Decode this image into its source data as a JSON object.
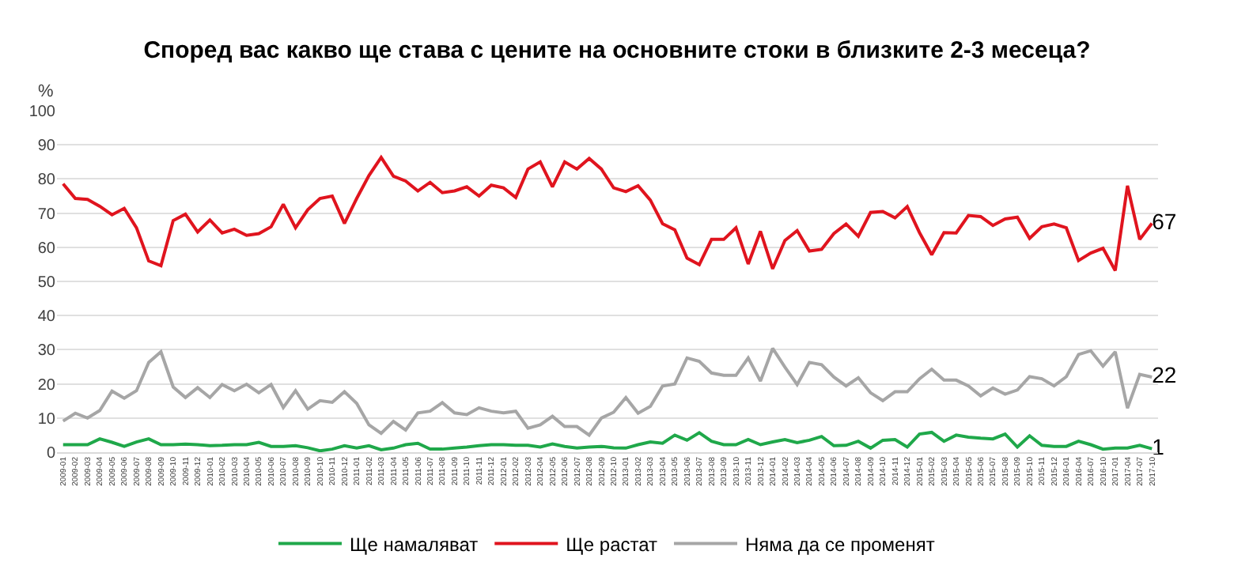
{
  "chart_data": {
    "type": "line",
    "title": "Според вас какво ще става с цените на основните стоки в близките 2-3 месеца?",
    "ylabel": "%",
    "categories": [
      "2009-01",
      "2009-02",
      "2009-03",
      "2009-04",
      "2009-05",
      "2009-06",
      "2009-07",
      "2009-08",
      "2009-09",
      "2009-10",
      "2009-11",
      "2009-12",
      "2010-01",
      "2010-02",
      "2010-03",
      "2010-04",
      "2010-05",
      "2010-06",
      "2010-07",
      "2010-08",
      "2010-09",
      "2010-10",
      "2010-11",
      "2010-12",
      "2011-01",
      "2011-02",
      "2011-03",
      "2011-04",
      "2011-05",
      "2011-06",
      "2011-07",
      "2011-08",
      "2011-09",
      "2011-10",
      "2011-11",
      "2011-12",
      "2012-01",
      "2012-02",
      "2012-03",
      "2012-04",
      "2012-05",
      "2012-06",
      "2012-07",
      "2012-08",
      "2012-09",
      "2012-10",
      "2013-01",
      "2013-02",
      "2013-03",
      "2013-04",
      "2013-05",
      "2013-06",
      "2013-07",
      "2013-08",
      "2013-09",
      "2013-10",
      "2013-11",
      "2013-12",
      "2014-01",
      "2014-02",
      "2014-03",
      "2014-04",
      "2014-05",
      "2014-06",
      "2014-07",
      "2014-08",
      "2014-09",
      "2014-10",
      "2014-11",
      "2014-12",
      "2015-01",
      "2015-02",
      "2015-03",
      "2015-04",
      "2015-05",
      "2015-06",
      "2015-07",
      "2015-08",
      "2015-09",
      "2015-10",
      "2015-11",
      "2015-12",
      "2016-01",
      "2016-04",
      "2016-07",
      "2016-10",
      "2017-01",
      "2017-04",
      "2017-07",
      "2017-10"
    ],
    "series": [
      {
        "name": "Ще намаляват",
        "color": "#1fa84a",
        "values": [
          2.2,
          2.2,
          2.2,
          3.9,
          2.9,
          1.7,
          3,
          3.9,
          2.2,
          2.2,
          2.4,
          2.2,
          1.9,
          2,
          2.2,
          2.2,
          2.9,
          1.7,
          1.7,
          1.9,
          1.3,
          0.4,
          0.9,
          1.9,
          1.2,
          1.9,
          0.7,
          1.2,
          2.2,
          2.6,
          0.9,
          0.9,
          1.2,
          1.5,
          1.9,
          2.2,
          2.2,
          2,
          2,
          1.5,
          2.4,
          1.7,
          1.2,
          1.5,
          1.7,
          1.3,
          1.2,
          2.2,
          3,
          2.6,
          5,
          3.5,
          5.7,
          3.2,
          2.2,
          2.2,
          3.7,
          2.2,
          3,
          3.7,
          2.8,
          3.5,
          4.6,
          1.9,
          2,
          3.2,
          1.2,
          3.5,
          3.7,
          1.5,
          5.3,
          5.8,
          3.2,
          5,
          4.4,
          4.1,
          3.9,
          5.3,
          1.5,
          4.8,
          2,
          1.7,
          1.7,
          3.2,
          2.2,
          0.9,
          1.2,
          1.2,
          2,
          1
        ],
        "value_labels": [
          null,
          null,
          null,
          null,
          null,
          null,
          null,
          null,
          null,
          null,
          null,
          null,
          null,
          null,
          null,
          null,
          null,
          null,
          null,
          null,
          null,
          null,
          null,
          null,
          null,
          null,
          null,
          null,
          null,
          null,
          null,
          null,
          null,
          null,
          null,
          null,
          null,
          null,
          null,
          null,
          null,
          null,
          null,
          null,
          null,
          null,
          null,
          null,
          null,
          null,
          null,
          null,
          null,
          null,
          null,
          null,
          null,
          null,
          null,
          null,
          null,
          null,
          null,
          null,
          null,
          null,
          null,
          null,
          null,
          null,
          null,
          null,
          null,
          null,
          null,
          null,
          null,
          null,
          null,
          null,
          null,
          null,
          null,
          null,
          null,
          null,
          null,
          null,
          null,
          "1"
        ]
      },
      {
        "name": "Ще растат",
        "color": "#e0141e",
        "values": [
          78.6,
          74.3,
          74,
          72,
          69.5,
          71.4,
          65.7,
          56,
          54.6,
          67.8,
          69.7,
          64.5,
          68,
          64.2,
          65.3,
          63.5,
          64,
          66,
          72.6,
          65.7,
          71,
          74.3,
          75,
          67,
          74.3,
          81,
          86.3,
          80.8,
          79.4,
          76.5,
          79,
          76,
          76.5,
          77.7,
          75,
          78.2,
          77.4,
          74.6,
          82.9,
          85,
          77.7,
          85,
          82.9,
          86,
          82.9,
          77.4,
          76.3,
          78,
          73.8,
          66.9,
          65.1,
          56.8,
          54.9,
          62.3,
          62.3,
          65.7,
          55.1,
          64.7,
          53.7,
          62,
          64.9,
          58.9,
          59.4,
          64,
          66.8,
          63.2,
          70.2,
          70.5,
          68.6,
          71.9,
          64.3,
          57.8,
          64.3,
          64.2,
          69.3,
          69,
          66.4,
          68.3,
          68.8,
          62.6,
          66,
          66.8,
          65.7,
          56.1,
          58.3,
          59.7,
          53.2,
          78,
          62.3,
          67
        ],
        "value_labels": [
          null,
          null,
          null,
          null,
          null,
          null,
          null,
          null,
          null,
          null,
          null,
          null,
          null,
          null,
          null,
          null,
          null,
          null,
          null,
          null,
          null,
          null,
          null,
          null,
          null,
          null,
          null,
          null,
          null,
          null,
          null,
          null,
          null,
          null,
          null,
          null,
          null,
          null,
          null,
          null,
          null,
          null,
          null,
          null,
          null,
          null,
          null,
          null,
          null,
          null,
          null,
          null,
          null,
          null,
          null,
          null,
          null,
          null,
          null,
          null,
          null,
          null,
          null,
          null,
          null,
          null,
          null,
          null,
          null,
          null,
          null,
          null,
          null,
          null,
          null,
          null,
          null,
          null,
          null,
          null,
          null,
          null,
          null,
          null,
          null,
          null,
          null,
          null,
          null,
          "67"
        ]
      },
      {
        "name": "Няма да се променят",
        "color": "#a6a6a6",
        "values": [
          9.1,
          11.4,
          10,
          12.2,
          17.9,
          15.8,
          18,
          26.3,
          29.4,
          19.1,
          16,
          18.9,
          16,
          19.8,
          18,
          19.9,
          17.4,
          19.8,
          13.1,
          18,
          12.6,
          15.1,
          14.6,
          17.7,
          14.3,
          8,
          5.5,
          9,
          6.5,
          11.5,
          12,
          14.5,
          11.5,
          11,
          13,
          12,
          11.5,
          12,
          7,
          8,
          10.5,
          7.5,
          7.5,
          5,
          10,
          11.7,
          16,
          11.4,
          13.4,
          19.4,
          20,
          27.6,
          26.6,
          23.2,
          22.5,
          22.5,
          27.6,
          20.8,
          30.4,
          24.9,
          19.8,
          26.3,
          25.6,
          22,
          19.4,
          21.8,
          17.4,
          15.1,
          17.7,
          17.7,
          21.5,
          24.3,
          21.1,
          21.1,
          19.4,
          16.5,
          18.8,
          17,
          18.2,
          22.1,
          21.5,
          19.4,
          22.1,
          28.6,
          29.7,
          25.2,
          29.4,
          12.9,
          22.8,
          22
        ],
        "value_labels": [
          null,
          null,
          null,
          null,
          null,
          null,
          null,
          null,
          null,
          null,
          null,
          null,
          null,
          null,
          null,
          null,
          null,
          null,
          null,
          null,
          null,
          null,
          null,
          null,
          null,
          null,
          null,
          null,
          null,
          null,
          null,
          null,
          null,
          null,
          null,
          null,
          null,
          null,
          null,
          null,
          null,
          null,
          null,
          null,
          null,
          null,
          null,
          null,
          null,
          null,
          null,
          null,
          null,
          null,
          null,
          null,
          null,
          null,
          null,
          null,
          null,
          null,
          null,
          null,
          null,
          null,
          null,
          null,
          null,
          null,
          null,
          null,
          null,
          null,
          null,
          null,
          null,
          null,
          null,
          null,
          null,
          null,
          null,
          null,
          null,
          null,
          null,
          null,
          null,
          "22"
        ]
      }
    ],
    "ylim": [
      0,
      100
    ],
    "yticks": [
      0,
      10,
      20,
      30,
      40,
      50,
      60,
      70,
      80,
      90,
      100
    ],
    "grid": "y",
    "legend": "bottom",
    "marker": "none",
    "line_style": "solid"
  }
}
